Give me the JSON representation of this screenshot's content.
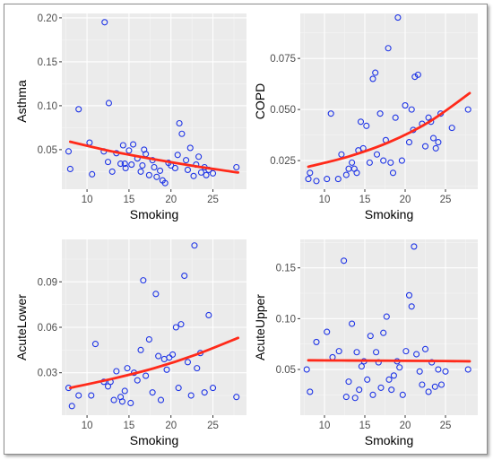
{
  "colors": {
    "panel_background": "#ebebeb",
    "grid_major": "#ffffff",
    "grid_minor": "#f5f5f5",
    "points": "#1f35e6",
    "trend_line": "#ff2a1a",
    "tick_label": "#4d4d4d"
  },
  "chart_data": [
    {
      "type": "scatter",
      "xlabel": "Smoking",
      "ylabel": "Asthma",
      "xlim": [
        7,
        29
      ],
      "ylim": [
        0.005,
        0.205
      ],
      "xticks": [
        10,
        15,
        20,
        25
      ],
      "yticks": [
        0.05,
        0.1,
        0.15,
        0.2
      ],
      "ytick_labels": [
        "0.05",
        "0.10",
        "0.15",
        "0.20"
      ],
      "grid": true,
      "points": {
        "x": [
          7.8,
          8.0,
          9.0,
          10.3,
          10.6,
          12.0,
          12.1,
          12.5,
          12.6,
          13.0,
          13.5,
          14.0,
          14.3,
          14.5,
          14.6,
          15.0,
          15.3,
          15.5,
          16.0,
          16.4,
          16.6,
          16.8,
          17.0,
          17.4,
          17.8,
          18.0,
          18.3,
          18.7,
          19.0,
          19.3,
          19.7,
          20.0,
          20.5,
          20.8,
          21.0,
          21.3,
          21.8,
          22.0,
          22.3,
          22.7,
          23.0,
          23.3,
          23.6,
          24.0,
          24.2,
          24.5,
          25.0,
          27.8
        ],
        "y": [
          0.048,
          0.028,
          0.096,
          0.058,
          0.022,
          0.048,
          0.195,
          0.036,
          0.103,
          0.025,
          0.046,
          0.034,
          0.055,
          0.034,
          0.029,
          0.049,
          0.033,
          0.056,
          0.04,
          0.025,
          0.032,
          0.05,
          0.045,
          0.021,
          0.038,
          0.03,
          0.019,
          0.026,
          0.015,
          0.012,
          0.035,
          0.032,
          0.029,
          0.044,
          0.08,
          0.068,
          0.038,
          0.027,
          0.052,
          0.02,
          0.033,
          0.042,
          0.024,
          0.03,
          0.021,
          0.027,
          0.023,
          0.03
        ]
      },
      "trend": {
        "x": [
          8,
          13,
          18,
          23,
          28
        ],
        "y": [
          0.059,
          0.048,
          0.039,
          0.031,
          0.024
        ]
      }
    },
    {
      "type": "scatter",
      "xlabel": "Smoking",
      "ylabel": "COPD",
      "xlim": [
        7,
        29
      ],
      "ylim": [
        0.011,
        0.097
      ],
      "xticks": [
        10,
        15,
        20,
        25
      ],
      "yticks": [
        0.025,
        0.05,
        0.075
      ],
      "ytick_labels": [
        "0.025",
        "0.050",
        "0.075"
      ],
      "grid": true,
      "points": {
        "x": [
          8.0,
          8.2,
          9.0,
          10.3,
          10.8,
          11.7,
          12.1,
          12.7,
          13.0,
          13.4,
          13.7,
          14.0,
          14.2,
          14.5,
          14.8,
          15.2,
          15.6,
          16.0,
          16.3,
          16.5,
          16.9,
          17.3,
          17.6,
          17.9,
          18.2,
          18.5,
          18.8,
          19.1,
          19.6,
          20.0,
          20.5,
          20.8,
          21.0,
          21.2,
          21.6,
          22.1,
          22.5,
          22.9,
          23.2,
          23.5,
          23.8,
          24.1,
          24.4,
          25.8,
          27.8
        ],
        "y": [
          0.016,
          0.019,
          0.015,
          0.016,
          0.048,
          0.016,
          0.028,
          0.018,
          0.021,
          0.024,
          0.021,
          0.019,
          0.03,
          0.044,
          0.031,
          0.042,
          0.024,
          0.065,
          0.068,
          0.028,
          0.048,
          0.025,
          0.035,
          0.08,
          0.024,
          0.019,
          0.046,
          0.095,
          0.025,
          0.052,
          0.034,
          0.05,
          0.04,
          0.066,
          0.067,
          0.043,
          0.032,
          0.046,
          0.044,
          0.036,
          0.031,
          0.034,
          0.048,
          0.041,
          0.05
        ]
      },
      "trend": {
        "x": [
          8,
          13,
          18,
          23,
          28
        ],
        "y": [
          0.022,
          0.027,
          0.034,
          0.044,
          0.058
        ]
      }
    },
    {
      "type": "scatter",
      "xlabel": "Smoking",
      "ylabel": "AcuteLower",
      "xlim": [
        7,
        29
      ],
      "ylim": [
        0.002,
        0.118
      ],
      "xticks": [
        10,
        15,
        20,
        25
      ],
      "yticks": [
        0.03,
        0.06,
        0.09
      ],
      "ytick_labels": [
        "0.03",
        "0.06",
        "0.09"
      ],
      "grid": true,
      "points": {
        "x": [
          7.8,
          8.2,
          9.0,
          10.5,
          11.0,
          12.0,
          12.5,
          12.8,
          13.2,
          13.5,
          14.0,
          14.2,
          14.5,
          14.8,
          15.2,
          15.6,
          16.0,
          16.4,
          16.7,
          17.0,
          17.4,
          17.8,
          18.2,
          18.5,
          18.8,
          19.2,
          19.5,
          19.8,
          20.2,
          20.6,
          20.9,
          21.2,
          21.6,
          22.0,
          22.4,
          22.8,
          23.1,
          23.5,
          24.0,
          24.5,
          25.0,
          27.8
        ],
        "y": [
          0.02,
          0.008,
          0.015,
          0.015,
          0.049,
          0.024,
          0.021,
          0.024,
          0.012,
          0.031,
          0.014,
          0.011,
          0.018,
          0.033,
          0.01,
          0.03,
          0.025,
          0.045,
          0.091,
          0.028,
          0.052,
          0.017,
          0.082,
          0.041,
          0.012,
          0.039,
          0.032,
          0.04,
          0.042,
          0.06,
          0.02,
          0.062,
          0.094,
          0.037,
          0.015,
          0.114,
          0.033,
          0.043,
          0.017,
          0.068,
          0.02,
          0.014
        ]
      },
      "trend": {
        "x": [
          8,
          13,
          18,
          23,
          28
        ],
        "y": [
          0.02,
          0.026,
          0.033,
          0.042,
          0.053
        ]
      }
    },
    {
      "type": "scatter",
      "xlabel": "Smoking",
      "ylabel": "AcuteUpper",
      "xlim": [
        7,
        29
      ],
      "ylim": [
        0.005,
        0.178
      ],
      "xticks": [
        10,
        15,
        20,
        25
      ],
      "yticks": [
        0.05,
        0.1,
        0.15
      ],
      "ytick_labels": [
        "0.05",
        "0.10",
        "0.15"
      ],
      "grid": true,
      "points": {
        "x": [
          7.8,
          8.2,
          9.0,
          10.3,
          11.0,
          11.8,
          12.4,
          12.7,
          13.0,
          13.4,
          13.8,
          14.0,
          14.3,
          14.6,
          14.9,
          15.3,
          15.7,
          16.0,
          16.4,
          16.7,
          17.0,
          17.3,
          17.7,
          18.0,
          18.3,
          18.6,
          19.0,
          19.3,
          19.7,
          20.1,
          20.5,
          20.8,
          21.1,
          21.4,
          21.8,
          22.1,
          22.5,
          22.9,
          23.3,
          23.7,
          24.1,
          24.5,
          25.0,
          27.8
        ],
        "y": [
          0.05,
          0.028,
          0.077,
          0.087,
          0.062,
          0.068,
          0.157,
          0.023,
          0.038,
          0.095,
          0.022,
          0.067,
          0.03,
          0.053,
          0.058,
          0.04,
          0.083,
          0.025,
          0.067,
          0.057,
          0.032,
          0.086,
          0.102,
          0.04,
          0.03,
          0.044,
          0.058,
          0.052,
          0.025,
          0.068,
          0.123,
          0.112,
          0.171,
          0.065,
          0.048,
          0.035,
          0.07,
          0.028,
          0.057,
          0.033,
          0.05,
          0.035,
          0.048,
          0.05
        ]
      },
      "trend": {
        "x": [
          8,
          13,
          18,
          23,
          28
        ],
        "y": [
          0.059,
          0.0588,
          0.0586,
          0.0584,
          0.058
        ]
      }
    }
  ]
}
